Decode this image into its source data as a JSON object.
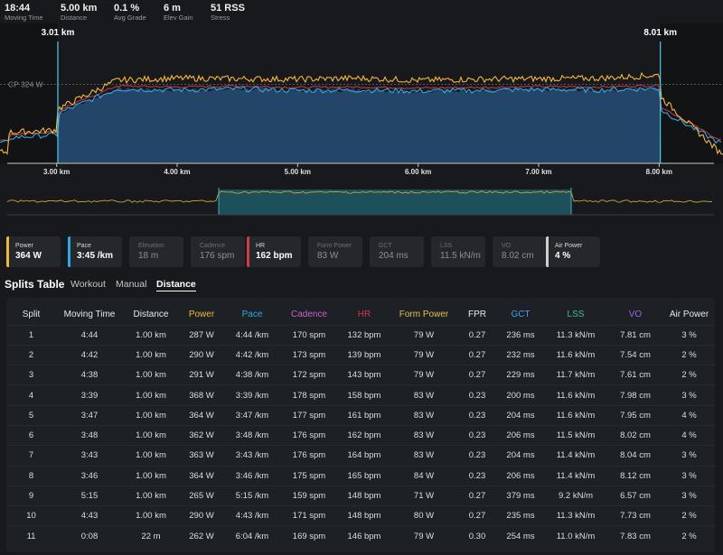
{
  "summary": [
    {
      "value": "18:44",
      "label": "Moving Time"
    },
    {
      "value": "5.00 km",
      "label": "Distance"
    },
    {
      "value": "0.1 %",
      "label": "Avg Grade"
    },
    {
      "value": "6 m",
      "label": "Elev Gain"
    },
    {
      "value": "51 RSS",
      "label": "Stress"
    }
  ],
  "chart": {
    "range_start_label": "3.01 km",
    "range_end_label": "8.01 km",
    "cp_label": "CP 324 W",
    "x_ticks": [
      "3.00 km",
      "4.00 km",
      "5.00 km",
      "6.00 km",
      "7.00 km",
      "8.00 km"
    ],
    "colors": {
      "power": "#f5b82e",
      "pace": "#2fa9e6",
      "hr": "#d03a46",
      "range": "#4fc8ee",
      "fill": "#24486c"
    }
  },
  "chart_data": {
    "type": "line",
    "x": [
      2.6,
      3.0,
      3.5,
      4.0,
      4.5,
      5.0,
      5.5,
      6.0,
      6.5,
      7.0,
      7.5,
      8.0,
      8.5
    ],
    "series": [
      {
        "values": [
          300,
          305,
          362,
          366,
          365,
          364,
          366,
          362,
          364,
          365,
          366,
          372,
          262
        ]
      },
      {
        "values": [
          290,
          296,
          345,
          343,
          345,
          342,
          343,
          341,
          342,
          344,
          343,
          346,
          280
        ]
      }
    ],
    "xlabel": "",
    "ylabel": "",
    "x_range": [
      2.53,
      8.53
    ],
    "selected_range": [
      3.01,
      8.01
    ],
    "cp_watts": 324
  },
  "cards": [
    {
      "label": "Power",
      "value": "364 W",
      "active": true,
      "color": "#f5b82e"
    },
    {
      "label": "Pace",
      "value": "3:45 /km",
      "active": true,
      "color": "#2fa9e6"
    },
    {
      "label": "Elevation",
      "value": "18 m",
      "active": false,
      "color": ""
    },
    {
      "label": "Cadence",
      "value": "176 spm",
      "active": false,
      "color": ""
    },
    {
      "label": "HR",
      "value": "162 bpm",
      "active": true,
      "color": "#d03a46"
    },
    {
      "label": "Form Power",
      "value": "83 W",
      "active": false,
      "color": ""
    },
    {
      "label": "GCT",
      "value": "204 ms",
      "active": false,
      "color": ""
    },
    {
      "label": "LSS",
      "value": "11.5 kN/m",
      "active": false,
      "color": ""
    },
    {
      "label": "VO",
      "value": "8.02 cm",
      "active": false,
      "color": ""
    },
    {
      "label": "Air Power",
      "value": "4 %",
      "active": true,
      "color": "#cfcfcf"
    }
  ],
  "splits": {
    "title": "Splits Table",
    "tabs": [
      {
        "label": "Workout",
        "active": false
      },
      {
        "label": "Manual",
        "active": false
      },
      {
        "label": "Distance",
        "active": true
      }
    ],
    "columns": [
      {
        "label": "Split",
        "color": "#e8e8e8"
      },
      {
        "label": "Moving Time",
        "color": "#e8e8e8"
      },
      {
        "label": "Distance",
        "color": "#e8e8e8"
      },
      {
        "label": "Power",
        "color": "#f5b82e"
      },
      {
        "label": "Pace",
        "color": "#2fa9e6"
      },
      {
        "label": "Cadence",
        "color": "#c860d0"
      },
      {
        "label": "HR",
        "color": "#d03a46"
      },
      {
        "label": "Form Power",
        "color": "#e8c050"
      },
      {
        "label": "FPR",
        "color": "#e8e8e8"
      },
      {
        "label": "GCT",
        "color": "#3aa6ee"
      },
      {
        "label": "LSS",
        "color": "#3fb9a3"
      },
      {
        "label": "VO",
        "color": "#a060e0"
      },
      {
        "label": "Air Power",
        "color": "#e8e8e8"
      }
    ],
    "rows": [
      [
        "1",
        "4:44",
        "1.00 km",
        "287 W",
        "4:44 /km",
        "170 spm",
        "132 bpm",
        "79 W",
        "0.27",
        "236 ms",
        "11.3 kN/m",
        "7.81 cm",
        "3 %"
      ],
      [
        "2",
        "4:42",
        "1.00 km",
        "290 W",
        "4:42 /km",
        "173 spm",
        "139 bpm",
        "79 W",
        "0.27",
        "232 ms",
        "11.6 kN/m",
        "7.54 cm",
        "2 %"
      ],
      [
        "3",
        "4:38",
        "1.00 km",
        "291 W",
        "4:38 /km",
        "172 spm",
        "143 bpm",
        "79 W",
        "0.27",
        "229 ms",
        "11.7 kN/m",
        "7.61 cm",
        "2 %"
      ],
      [
        "4",
        "3:39",
        "1.00 km",
        "368 W",
        "3:39 /km",
        "178 spm",
        "158 bpm",
        "83 W",
        "0.23",
        "200 ms",
        "11.6 kN/m",
        "7.98 cm",
        "3 %"
      ],
      [
        "5",
        "3:47",
        "1.00 km",
        "364 W",
        "3:47 /km",
        "177 spm",
        "161 bpm",
        "83 W",
        "0.23",
        "204 ms",
        "11.6 kN/m",
        "7.95 cm",
        "4 %"
      ],
      [
        "6",
        "3:48",
        "1.00 km",
        "362 W",
        "3:48 /km",
        "176 spm",
        "162 bpm",
        "83 W",
        "0.23",
        "206 ms",
        "11.5 kN/m",
        "8.02 cm",
        "4 %"
      ],
      [
        "7",
        "3:43",
        "1.00 km",
        "363 W",
        "3:43 /km",
        "176 spm",
        "164 bpm",
        "83 W",
        "0.23",
        "204 ms",
        "11.4 kN/m",
        "8.04 cm",
        "3 %"
      ],
      [
        "8",
        "3:46",
        "1.00 km",
        "364 W",
        "3:46 /km",
        "175 spm",
        "165 bpm",
        "84 W",
        "0.23",
        "206 ms",
        "11.4 kN/m",
        "8.12 cm",
        "3 %"
      ],
      [
        "9",
        "5:15",
        "1.00 km",
        "265 W",
        "5:15 /km",
        "159 spm",
        "148 bpm",
        "71 W",
        "0.27",
        "379 ms",
        "9.2 kN/m",
        "6.57 cm",
        "3 %"
      ],
      [
        "10",
        "4:43",
        "1.00 km",
        "290 W",
        "4:43 /km",
        "171 spm",
        "148 bpm",
        "80 W",
        "0.27",
        "235 ms",
        "11.3 kN/m",
        "7.73 cm",
        "2 %"
      ],
      [
        "11",
        "0:08",
        "22 m",
        "262 W",
        "6:04 /km",
        "169 spm",
        "146 bpm",
        "79 W",
        "0.30",
        "254 ms",
        "11.0 kN/m",
        "7.83 cm",
        "2 %"
      ]
    ]
  }
}
